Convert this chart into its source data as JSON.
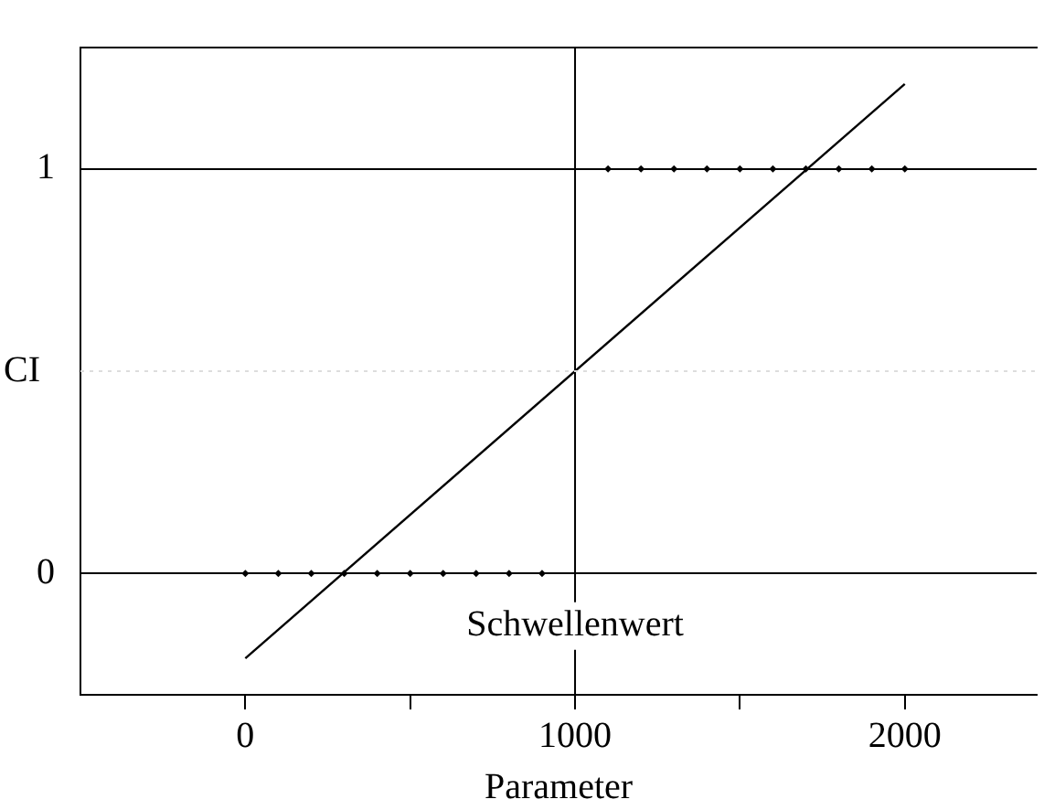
{
  "chart_data": {
    "type": "scatter",
    "xlabel": "Parameter",
    "ylabel": "CI",
    "series": [
      {
        "marker": "diamond",
        "color": "#000000",
        "x": [
          0,
          100,
          200,
          300,
          400,
          500,
          600,
          700,
          800,
          900,
          1100,
          1200,
          1300,
          1400,
          1500,
          1600,
          1700,
          1800,
          1900,
          2000
        ],
        "values": [
          0,
          0,
          0,
          0,
          0,
          0,
          0,
          0,
          0,
          0,
          1,
          1,
          1,
          1,
          1,
          1,
          1,
          1,
          1,
          1
        ]
      },
      {
        "type": "line",
        "marker": "none",
        "line_style": "solid",
        "color": "#000000",
        "x": [
          0,
          2000
        ],
        "values": [
          -0.21,
          1.21
        ]
      }
    ],
    "xlim": [
      -500,
      2400
    ],
    "xticks": [
      0,
      {
        "value": 500,
        "label": null
      },
      1000,
      {
        "value": 1500,
        "label": null
      },
      2000
    ],
    "ylim": [
      -0.3,
      1.3
    ],
    "yticks": [
      0,
      1
    ],
    "grid": "y",
    "ref_lines": [
      {
        "axis": "x",
        "value": 1000,
        "label": "Schwellenwert",
        "color": "#000000"
      },
      {
        "axis": "y",
        "value": 0.5,
        "color": "#dddddd",
        "line_style": "dotted"
      }
    ]
  }
}
